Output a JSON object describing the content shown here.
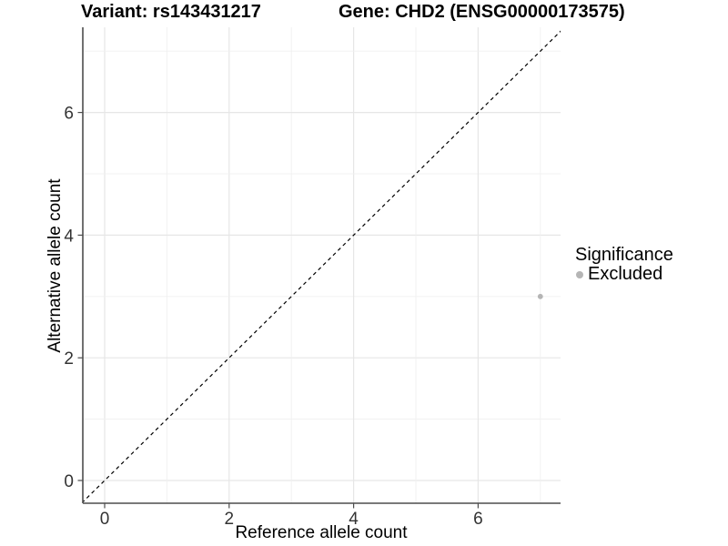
{
  "page": {
    "background": "#ffffff"
  },
  "chart_data": {
    "type": "scatter",
    "titles": {
      "left": "Variant: rs143431217",
      "right": "Gene: CHD2 (ENSG00000173575)"
    },
    "xlabel": "Reference allele count",
    "ylabel": "Alternative allele count",
    "x_ticks": [
      0,
      2,
      4,
      6
    ],
    "y_ticks": [
      0,
      2,
      4,
      6
    ],
    "grid_integers": [
      0,
      1,
      2,
      3,
      4,
      5,
      6,
      7
    ],
    "xlim": [
      -0.35,
      7.33
    ],
    "ylim": [
      -0.37,
      7.39
    ],
    "points": [
      {
        "x": 7,
        "y": 3,
        "significance": "Excluded"
      }
    ],
    "identity_line": {
      "equation": "y = x",
      "style": "dashed",
      "color": "#000000"
    },
    "legend": {
      "title": "Significance",
      "position": "right",
      "items": [
        {
          "label": "Excluded",
          "color": "#b5b5b5"
        }
      ]
    },
    "colors": {
      "point": "#b5b5b5",
      "grid_major": "#e6e6e6",
      "grid_minor": "#f0f0f0",
      "axis": "#4d4d4d",
      "tick_label": "#333333"
    },
    "grid": true
  }
}
